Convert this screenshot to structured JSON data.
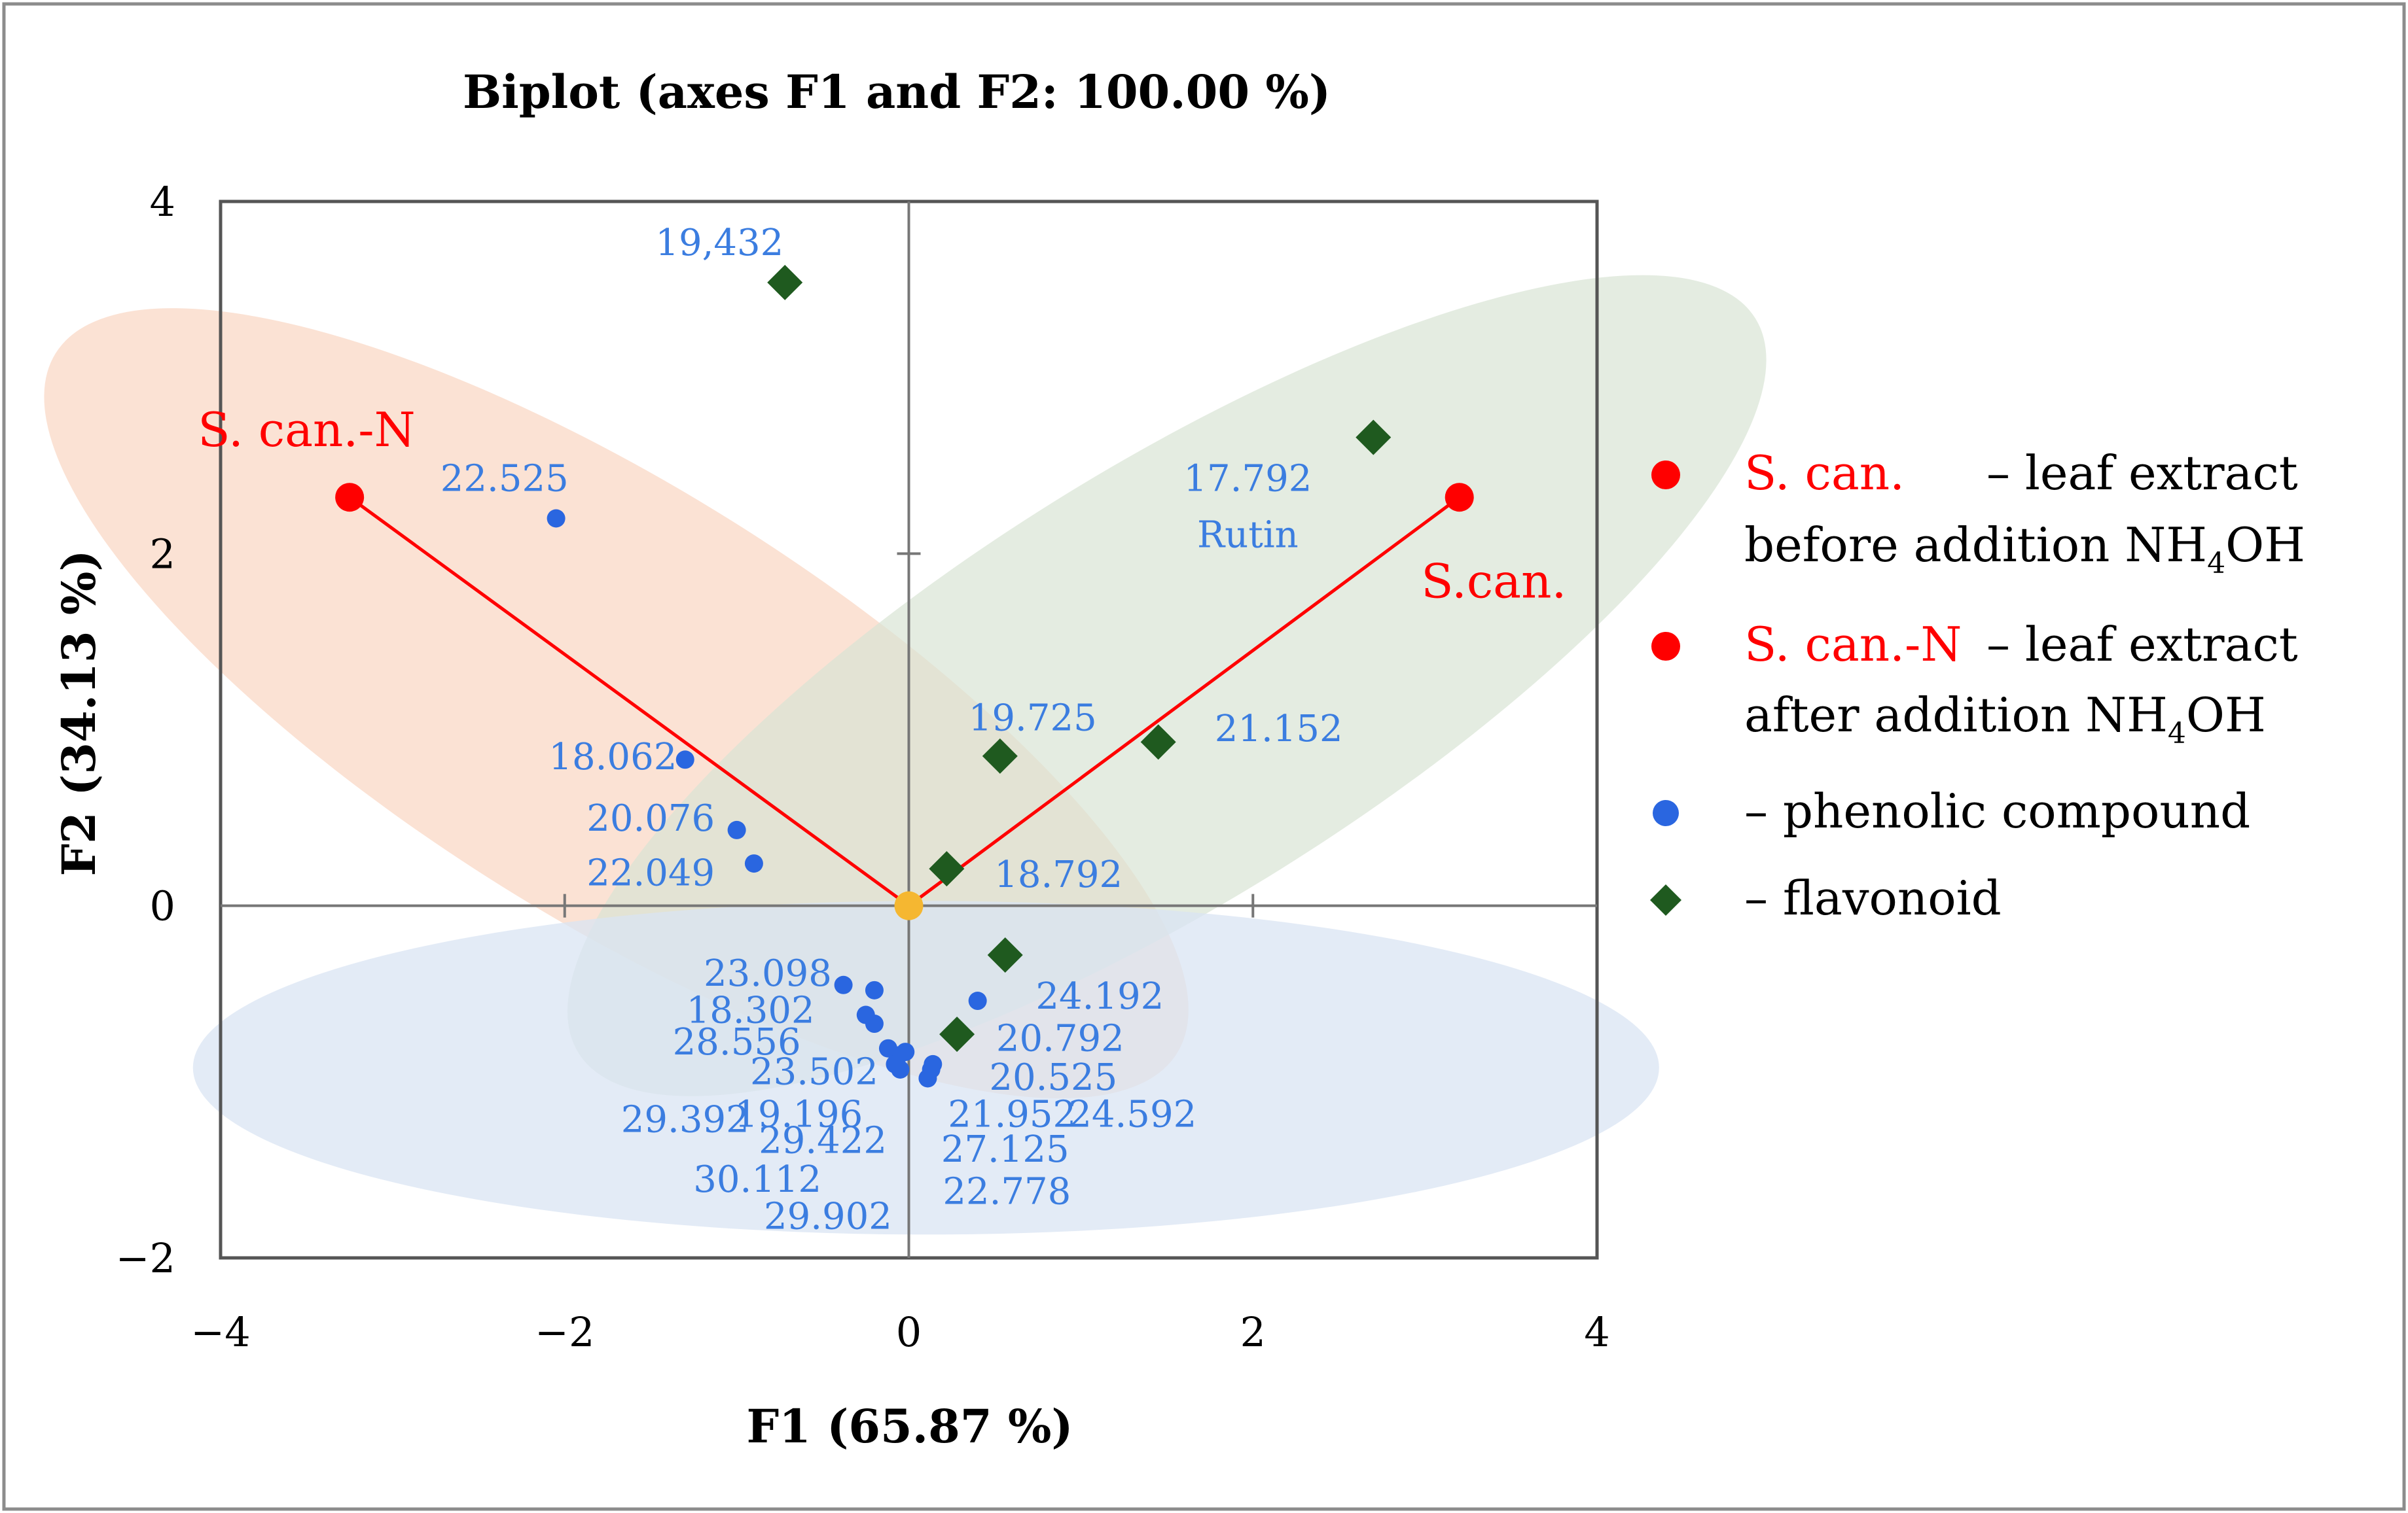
{
  "chart_data": {
    "type": "scatter",
    "title": "Biplot  (axes F1 and F2: 100.00 %)",
    "xlabel": "F1 (65.87 %)",
    "ylabel": "F2 (34.13 %)",
    "xlim": [
      -4,
      4
    ],
    "ylim": [
      -2,
      4
    ],
    "x_ticks": [
      "−4",
      "−2",
      "0",
      "2",
      "4"
    ],
    "y_ticks": [
      "−2",
      "0",
      "2",
      "4"
    ],
    "grid": false,
    "legend_position": "right",
    "colors": {
      "observation": "#ff0000",
      "phenolic": "#2a66e0",
      "phenolic_label": "#3b7de0",
      "flavonoid": "#1f5a1f",
      "origin": "#f5b731",
      "ellipse_red": "#f9d6c2",
      "ellipse_green": "#d8e4d4",
      "ellipse_blue": "#d9e4f3"
    },
    "observations": [
      {
        "name": "S. can.-N",
        "x": -3.25,
        "y": 2.32
      },
      {
        "name": "S.can.",
        "x": 3.2,
        "y": 2.32
      }
    ],
    "origin_point": {
      "x": 0,
      "y": 0
    },
    "series": [
      {
        "name": "phenolic compound",
        "points": [
          {
            "x": -2.05,
            "y": 2.2
          },
          {
            "x": -1.3,
            "y": 0.83
          },
          {
            "x": -1.0,
            "y": 0.43
          },
          {
            "x": -0.9,
            "y": 0.24
          },
          {
            "x": -0.38,
            "y": -0.45
          },
          {
            "x": -0.2,
            "y": -0.48
          },
          {
            "x": -0.25,
            "y": -0.62
          },
          {
            "x": -0.2,
            "y": -0.67
          },
          {
            "x": 0.4,
            "y": -0.54
          },
          {
            "x": -0.12,
            "y": -0.81
          },
          {
            "x": -0.06,
            "y": -0.85
          },
          {
            "x": -0.02,
            "y": -0.83
          },
          {
            "x": -0.08,
            "y": -0.9
          },
          {
            "x": -0.05,
            "y": -0.93
          },
          {
            "x": 0.14,
            "y": -0.9
          },
          {
            "x": 0.13,
            "y": -0.93
          },
          {
            "x": 0.11,
            "y": -0.98
          }
        ]
      },
      {
        "name": "flavonoid",
        "points": [
          {
            "x": -0.72,
            "y": 3.54
          },
          {
            "x": 2.7,
            "y": 2.66
          },
          {
            "x": 0.53,
            "y": 0.85
          },
          {
            "x": 1.45,
            "y": 0.93
          },
          {
            "x": 0.22,
            "y": 0.21
          },
          {
            "x": 0.56,
            "y": -0.28
          },
          {
            "x": 0.28,
            "y": -0.73
          }
        ]
      }
    ],
    "point_labels": [
      {
        "text": "19,432",
        "x": -1.1,
        "y": 3.77
      },
      {
        "text": "22.525",
        "x": -2.35,
        "y": 2.43
      },
      {
        "text": "17.792",
        "x": 1.97,
        "y": 2.43
      },
      {
        "text": "Rutin",
        "x": 1.97,
        "y": 2.11
      },
      {
        "text": "18.062",
        "x": -1.72,
        "y": 0.85
      },
      {
        "text": "20.076",
        "x": -1.5,
        "y": 0.5
      },
      {
        "text": "22.049",
        "x": -1.5,
        "y": 0.19
      },
      {
        "text": "19.725",
        "x": 0.72,
        "y": 1.07
      },
      {
        "text": "21.152",
        "x": 2.15,
        "y": 1.01
      },
      {
        "text": "18.792",
        "x": 0.87,
        "y": 0.18
      },
      {
        "text": "23.098",
        "x": -0.82,
        "y": -0.38
      },
      {
        "text": "18.302",
        "x": -0.92,
        "y": -0.59
      },
      {
        "text": "28.556",
        "x": -1.0,
        "y": -0.77
      },
      {
        "text": "23.502",
        "x": -0.55,
        "y": -0.94
      },
      {
        "text": "24.192",
        "x": 1.11,
        "y": -0.51
      },
      {
        "text": "20.792",
        "x": 0.88,
        "y": -0.75
      },
      {
        "text": "20.525",
        "x": 0.84,
        "y": -0.97
      },
      {
        "text": "29.392",
        "x": -1.3,
        "y": -1.21
      },
      {
        "text": "19.196",
        "x": -0.64,
        "y": -1.18
      },
      {
        "text": "29.422",
        "x": -0.5,
        "y": -1.33
      },
      {
        "text": "21.952",
        "x": 0.6,
        "y": -1.18
      },
      {
        "text": "24.592",
        "x": 1.3,
        "y": -1.18
      },
      {
        "text": "27.125",
        "x": 0.56,
        "y": -1.38
      },
      {
        "text": "30.112",
        "x": -0.88,
        "y": -1.55
      },
      {
        "text": "22.778",
        "x": 0.57,
        "y": -1.62
      },
      {
        "text": "29.902",
        "x": -0.47,
        "y": -1.76
      }
    ],
    "observation_labels": [
      {
        "text": "S. can.-N",
        "x": -3.5,
        "y": 2.7
      },
      {
        "text": "S.can.",
        "x": 3.4,
        "y": 1.84
      }
    ]
  },
  "legend": {
    "items": [
      {
        "symbol": "red-dot",
        "red_text": "S. can.",
        "text": "– leaf extract",
        "line2": "before addition NH",
        "sub": "4",
        "tail": "OH"
      },
      {
        "symbol": "red-dot",
        "red_text": "S. can.-N",
        "text": "– leaf extract",
        "line2": "after addition NH",
        "sub": "4",
        "tail": "OH"
      },
      {
        "symbol": "blue-dot",
        "text": "– phenolic compound"
      },
      {
        "symbol": "green-diamond",
        "text": "– flavonoid"
      }
    ]
  }
}
